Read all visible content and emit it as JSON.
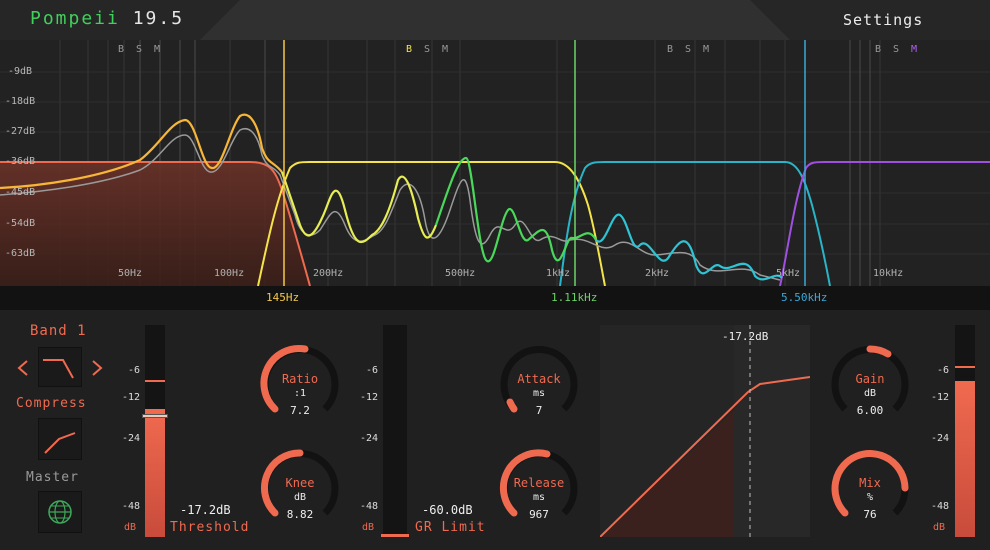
{
  "header": {
    "brand": "Pompeii",
    "version": "19.5",
    "settings_label": "Settings"
  },
  "analyzer": {
    "db_ticks": [
      "-9dB",
      "-18dB",
      "-27dB",
      "-36dB",
      "-45dB",
      "-54dB",
      "-63dB"
    ],
    "freq_ticks": [
      "50Hz",
      "100Hz",
      "200Hz",
      "500Hz",
      "1kHz",
      "2kHz",
      "5kHz",
      "10kHz"
    ],
    "band_buttons": [
      {
        "b": "B",
        "s": "S",
        "m": "M"
      },
      {
        "b": "B",
        "s": "S",
        "m": "M"
      },
      {
        "b": "B",
        "s": "S",
        "m": "M"
      },
      {
        "b": "B",
        "s": "S",
        "m": "M"
      }
    ],
    "crossovers": [
      "145Hz",
      "1.11kHz",
      "5.50kHz"
    ],
    "colors": {
      "band1": "#f06a4f",
      "band2": "#f4e44a",
      "band3": "#3fd15a",
      "band4": "#2ab4c8",
      "band5": "#a050e0"
    }
  },
  "band_panel": {
    "band_title": "Band 1",
    "prev_icon": "chevron-left-icon",
    "next_icon": "chevron-right-icon",
    "mode_label": "Compress",
    "master_label": "Master"
  },
  "meters": {
    "input_scale": [
      "-6",
      "-12",
      "-24",
      "-48",
      "dB"
    ],
    "gr_scale": [
      "-6",
      "-12",
      "-24",
      "-48",
      "dB"
    ],
    "output_scale": [
      "-6",
      "-12",
      "-24",
      "-48",
      "dB"
    ]
  },
  "threshold": {
    "value": "-17.2dB",
    "label": "Threshold"
  },
  "gr_limit": {
    "value": "-60.0dB",
    "label": "GR Limit"
  },
  "knobs": {
    "ratio": {
      "label": "Ratio",
      "unit": ":1",
      "value": "7.2",
      "fraction": 0.55
    },
    "knee": {
      "label": "Knee",
      "unit": "dB",
      "value": "8.82",
      "fraction": 0.5
    },
    "attack": {
      "label": "Attack",
      "unit": "ms",
      "value": "7",
      "fraction": 0.08
    },
    "release": {
      "label": "Release",
      "unit": "ms",
      "value": "967",
      "fraction": 0.6
    },
    "gain": {
      "label": "Gain",
      "unit": "dB",
      "value": "6.00",
      "fraction": 0.62
    },
    "mix": {
      "label": "Mix",
      "unit": "%",
      "value": "76",
      "fraction": 0.76
    }
  },
  "transfer": {
    "threshold_label": "-17.2dB"
  }
}
